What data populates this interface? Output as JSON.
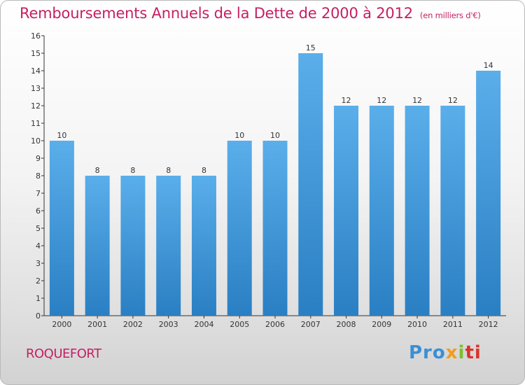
{
  "header": {
    "title": "Remboursements Annuels de la Dette de 2000 à 2012",
    "unit": "(en milliers d'€)"
  },
  "footer": {
    "town": "ROQUEFORT",
    "brand": [
      "Pro",
      "x",
      "i",
      "ti"
    ]
  },
  "colors": {
    "accent": "#c52063",
    "bar_top": "#5aaeea",
    "bar_bottom": "#2a7fc3"
  },
  "chart_data": {
    "type": "bar",
    "title": "Remboursements Annuels de la Dette de 2000 à 2012",
    "subtitle": "(en milliers d'€)",
    "categories": [
      "2000",
      "2001",
      "2002",
      "2003",
      "2004",
      "2005",
      "2006",
      "2007",
      "2008",
      "2009",
      "2010",
      "2011",
      "2012"
    ],
    "values": [
      10,
      8,
      8,
      8,
      8,
      10,
      10,
      15,
      12,
      12,
      12,
      12,
      14
    ],
    "ylim": [
      0,
      16
    ],
    "yticks": [
      0,
      1,
      2,
      3,
      4,
      5,
      6,
      7,
      8,
      9,
      10,
      11,
      12,
      13,
      14,
      15,
      16
    ],
    "grid": false,
    "data_labels": true
  }
}
